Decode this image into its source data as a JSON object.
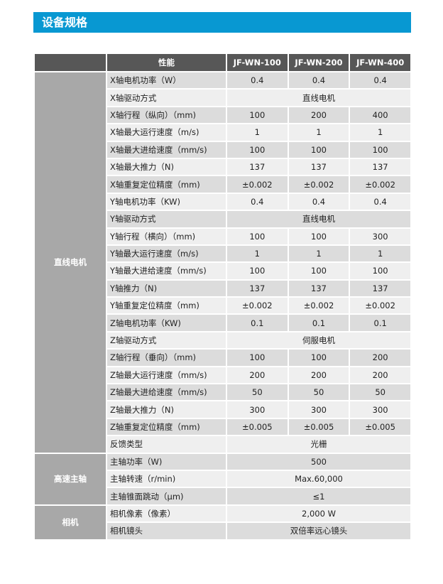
{
  "title": "设备规格",
  "header": {
    "corner": "",
    "performance": "性能",
    "models": [
      "JF-WN-100",
      "JF-WN-200",
      "JF-WN-400"
    ]
  },
  "groups": [
    {
      "label": "直线电机",
      "rows": [
        {
          "name": "X轴电机功率（W）",
          "values": [
            "0.4",
            "0.4",
            "0.4"
          ]
        },
        {
          "name": "X轴驱动方式",
          "merged": "直线电机"
        },
        {
          "name": "X轴行程（纵向）（mm)",
          "values": [
            "100",
            "200",
            "400"
          ]
        },
        {
          "name": "X轴最大运行速度（m/s)",
          "values": [
            "1",
            "1",
            "1"
          ]
        },
        {
          "name": "X轴最大进给速度（mm/s)",
          "values": [
            "100",
            "100",
            "100"
          ]
        },
        {
          "name": "X轴最大推力（N)",
          "values": [
            "137",
            "137",
            "137"
          ]
        },
        {
          "name": "X轴重复定位精度（mm)",
          "values": [
            "±0.002",
            "±0.002",
            "±0.002"
          ]
        },
        {
          "name": "Y轴电机功率（KW)",
          "values": [
            "0.4",
            "0.4",
            "0.4"
          ]
        },
        {
          "name": "Y轴驱动方式",
          "merged": "直线电机"
        },
        {
          "name": "Y轴行程（横向）（mm)",
          "values": [
            "100",
            "100",
            "300"
          ]
        },
        {
          "name": "Y轴最大运行速度（m/s)",
          "values": [
            "1",
            "1",
            "1"
          ]
        },
        {
          "name": "Y轴最大进给速度（mm/s)",
          "values": [
            "100",
            "100",
            "100"
          ]
        },
        {
          "name": "Y轴推力（N)",
          "values": [
            "137",
            "137",
            "137"
          ]
        },
        {
          "name": "Y轴重复定位精度（mm)",
          "values": [
            "±0.002",
            "±0.002",
            "±0.002"
          ]
        },
        {
          "name": "Z轴电机功率（KW)",
          "values": [
            "0.1",
            "0.1",
            "0.1"
          ]
        },
        {
          "name": "Z轴驱动方式",
          "merged": "伺服电机"
        },
        {
          "name": "Z轴行程（垂向）（mm)",
          "values": [
            "100",
            "100",
            "200"
          ]
        },
        {
          "name": "Z轴最大运行速度（mm/s)",
          "values": [
            "200",
            "200",
            "200"
          ]
        },
        {
          "name": "Z轴最大进给速度（mm/s)",
          "values": [
            "50",
            "50",
            "50"
          ]
        },
        {
          "name": "Z轴最大推力（N)",
          "values": [
            "300",
            "300",
            "300"
          ]
        },
        {
          "name": "Z轴重复定位精度（mm)",
          "values": [
            "±0.005",
            "±0.005",
            "±0.005"
          ]
        },
        {
          "name": "反馈类型",
          "merged": "光栅"
        }
      ]
    },
    {
      "label": "高速主轴",
      "rows": [
        {
          "name": "主轴功率（W)",
          "merged": "500"
        },
        {
          "name": "主轴转速（r/min)",
          "merged": "Max.60,000"
        },
        {
          "name": "主轴锥面跳动（μm)",
          "merged": "≤1"
        }
      ]
    },
    {
      "label": "相机",
      "rows": [
        {
          "name": "相机像素（像素）",
          "merged": "2,000 W"
        },
        {
          "name": "相机镜头",
          "merged": "双倍率远心镜头"
        }
      ]
    }
  ]
}
